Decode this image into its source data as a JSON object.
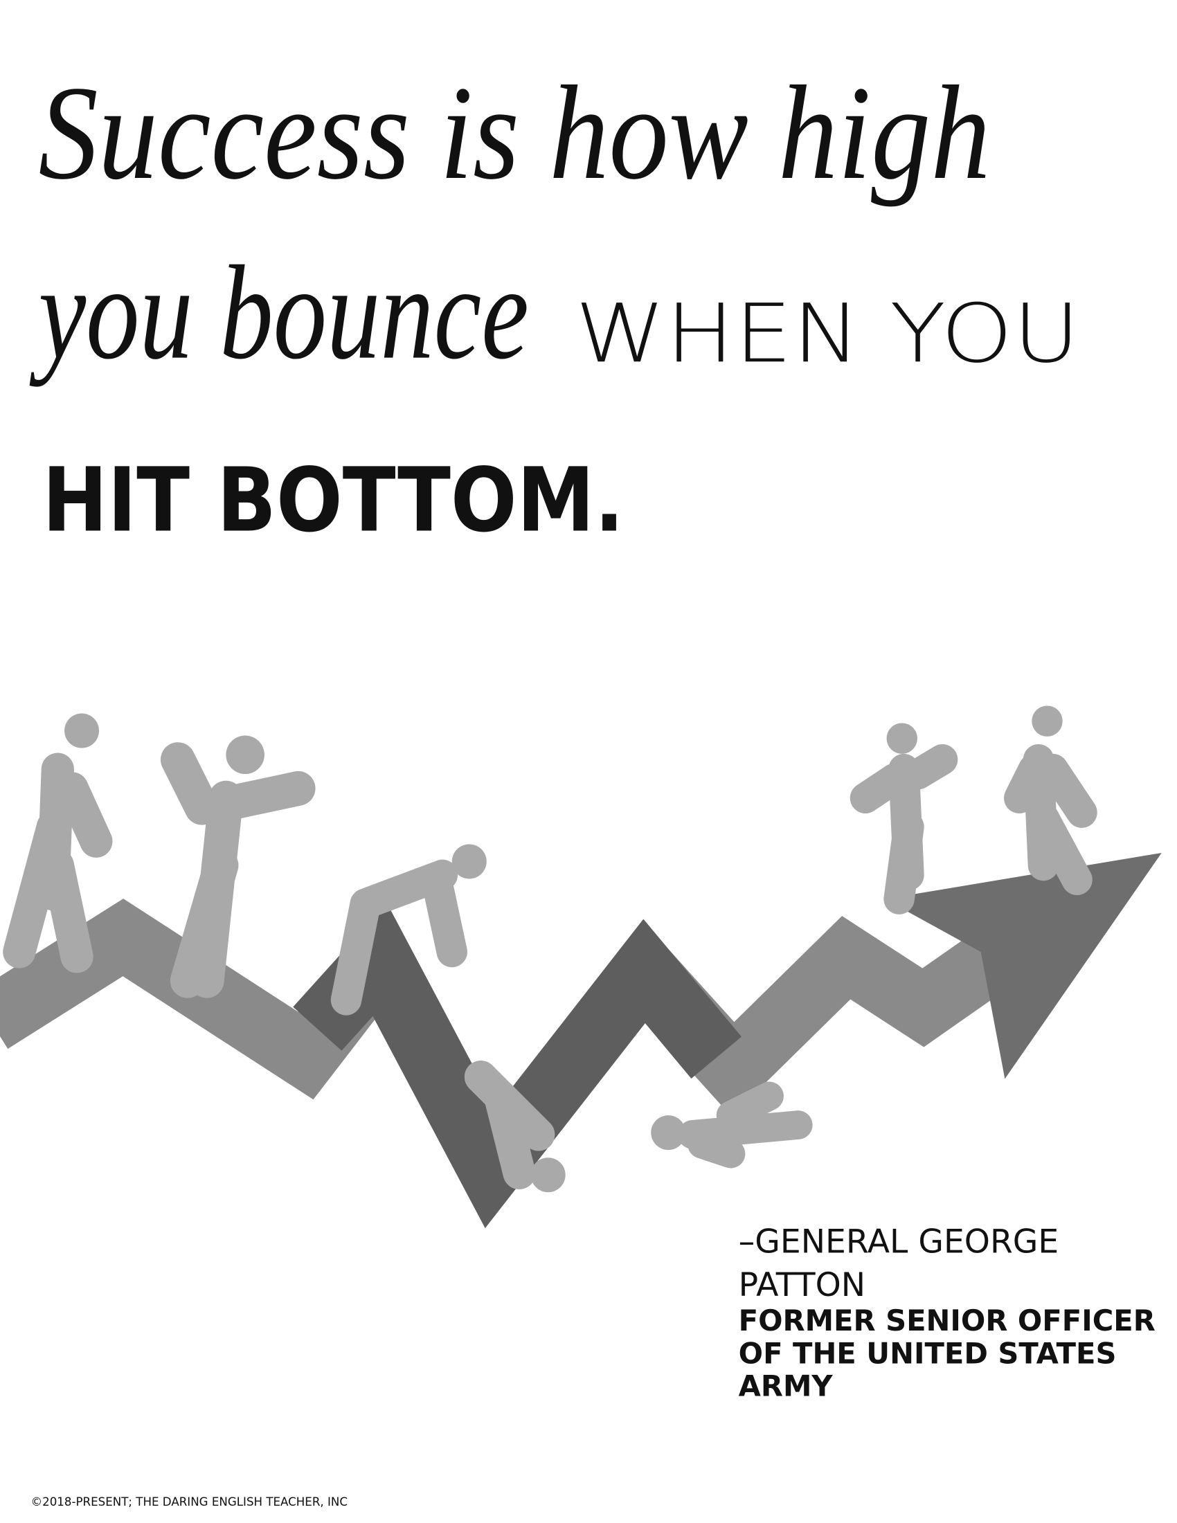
{
  "quote": {
    "script_line_1": "Success is how high",
    "script_line_2": "you bounce",
    "caps_line_2": "WHEN YOU",
    "bold_line_3": "HIT BOTTOM."
  },
  "attribution": {
    "name_lines": [
      "–GENERAL GEORGE",
      "PATTON"
    ],
    "role_lines": [
      "FORMER SENIOR OFFICER",
      "OF THE UNITED STATES",
      "ARMY"
    ]
  },
  "footer": {
    "copyright": "©2018-PRESENT; THE DARING ENGLISH TEACHER, INC"
  }
}
